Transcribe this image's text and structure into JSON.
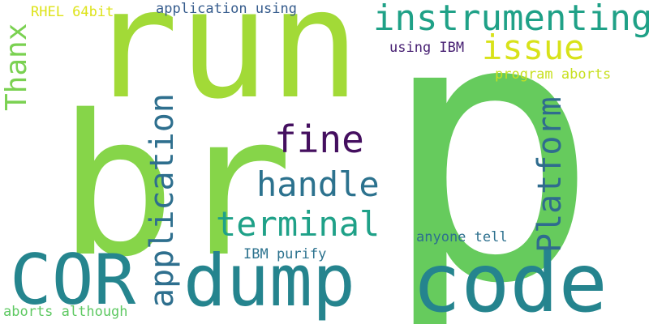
{
  "words": [
    {
      "id": "run",
      "text": "run",
      "color": "#a2da37"
    },
    {
      "id": "p",
      "text": "p",
      "color": "#66cb5d"
    },
    {
      "id": "br",
      "text": "br",
      "color": "#86d549"
    },
    {
      "id": "code",
      "text": "code",
      "color": "#25848e"
    },
    {
      "id": "cor",
      "text": "COR",
      "color": "#25858e"
    },
    {
      "id": "dump",
      "text": "dump",
      "color": "#25848e"
    },
    {
      "id": "instrumenting",
      "text": "instrumenting",
      "color": "#1fa187"
    },
    {
      "id": "issue",
      "text": "issue",
      "color": "#d8e219"
    },
    {
      "id": "fine",
      "text": "fine",
      "color": "#440f5f"
    },
    {
      "id": "handle",
      "text": "handle",
      "color": "#2c728e"
    },
    {
      "id": "terminal",
      "text": "terminal",
      "color": "#1fa188"
    },
    {
      "id": "application-vertical",
      "text": "application",
      "color": "#2e6f8e"
    },
    {
      "id": "platform",
      "text": "Platform",
      "color": "#2f6c8e"
    },
    {
      "id": "thanx",
      "text": "Thanx",
      "color": "#7ad151"
    },
    {
      "id": "application-using",
      "text": "application using",
      "color": "#365c8d"
    },
    {
      "id": "rhel-64bit",
      "text": "RHEL 64bit",
      "color": "#dde318"
    },
    {
      "id": "using-ibm",
      "text": "using IBM",
      "color": "#482173"
    },
    {
      "id": "program-aborts",
      "text": "program aborts",
      "color": "#c8e020"
    },
    {
      "id": "anyone-tell",
      "text": "anyone tell",
      "color": "#2d708e"
    },
    {
      "id": "ibm-purify",
      "text": "IBM purify",
      "color": "#2c728e"
    },
    {
      "id": "aborts-although",
      "text": "aborts although",
      "color": "#5ec962"
    }
  ]
}
